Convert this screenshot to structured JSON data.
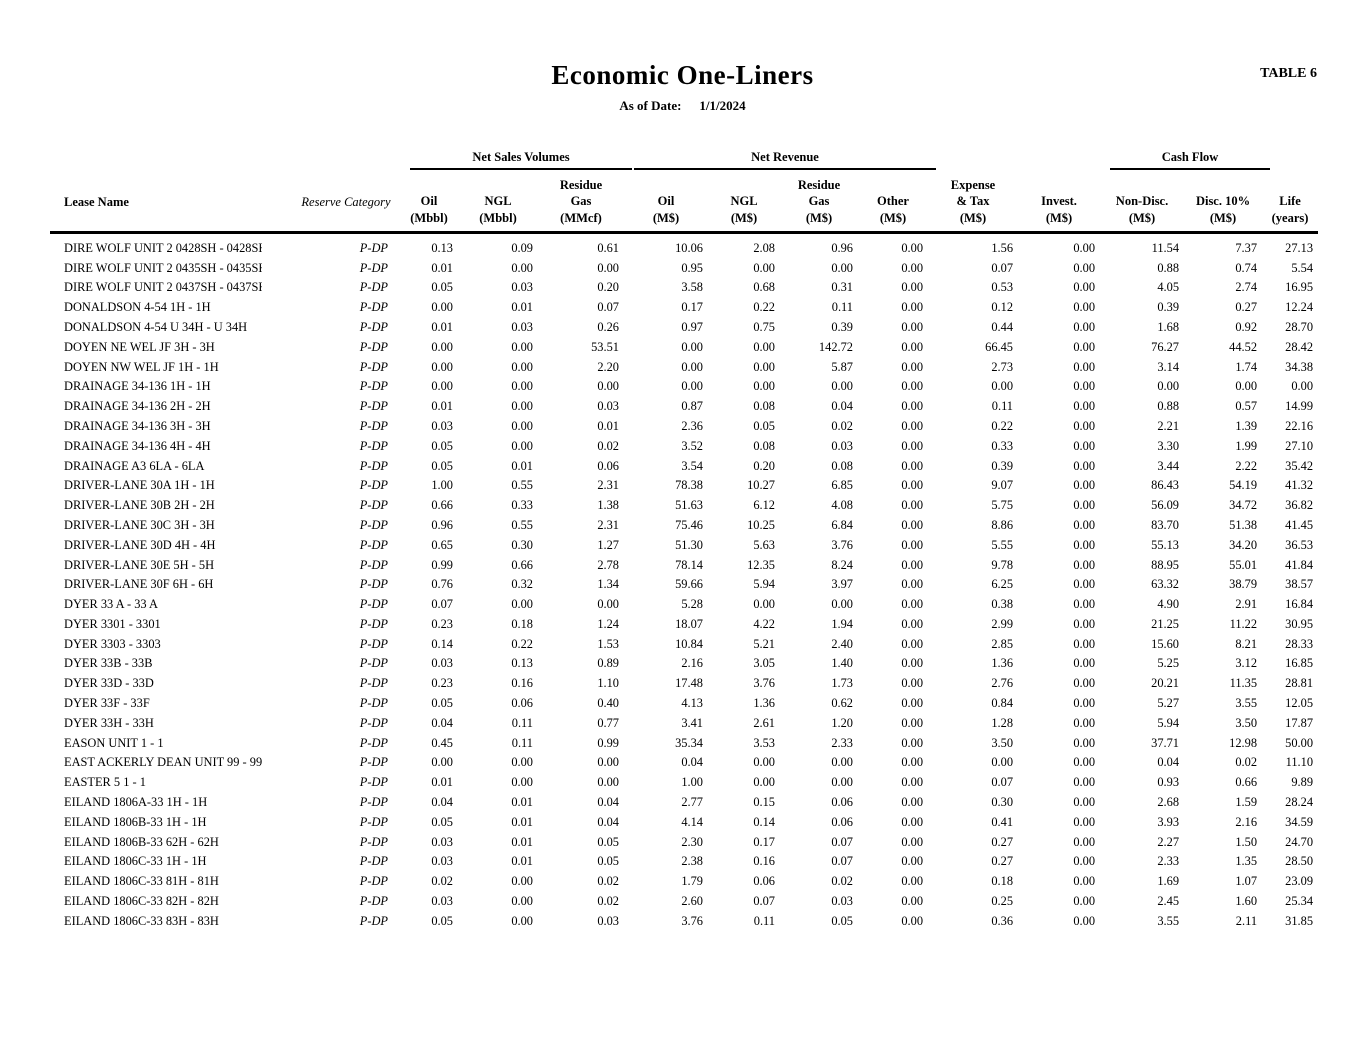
{
  "page": {
    "title": "Economic One-Liners",
    "as_of_label": "As of Date:",
    "as_of_value": "1/1/2024",
    "table_label": "TABLE 6"
  },
  "table": {
    "groups": {
      "net_sales_volumes": "Net Sales Volumes",
      "net_revenue": "Net Revenue",
      "cash_flow": "Cash Flow"
    },
    "headers": {
      "lease": "Lease Name",
      "rescat": "Reserve Category",
      "oil_vol": "Oil\n(Mbbl)",
      "ngl_vol": "NGL\n(Mbbl)",
      "resgas_vol": "Residue\nGas\n(MMcf)",
      "oil_rev": "Oil\n(M$)",
      "ngl_rev": "NGL\n(M$)",
      "resgas_rev": "Residue\nGas\n(M$)",
      "other_rev": "Other\n(M$)",
      "exptax": "Expense\n& Tax\n(M$)",
      "invest": "Invest.\n(M$)",
      "nondisc": "Non-Disc.\n(M$)",
      "disc10": "Disc. 10%\n(M$)",
      "life": "Life\n(years)"
    },
    "rows": [
      [
        "DIRE WOLF UNIT 2 0428SH - 0428SH",
        "P-DP",
        "0.13",
        "0.09",
        "0.61",
        "10.06",
        "2.08",
        "0.96",
        "0.00",
        "1.56",
        "0.00",
        "11.54",
        "7.37",
        "27.13"
      ],
      [
        "DIRE WOLF UNIT 2 0435SH - 0435SH",
        "P-DP",
        "0.01",
        "0.00",
        "0.00",
        "0.95",
        "0.00",
        "0.00",
        "0.00",
        "0.07",
        "0.00",
        "0.88",
        "0.74",
        "5.54"
      ],
      [
        "DIRE WOLF UNIT 2 0437SH - 0437SH",
        "P-DP",
        "0.05",
        "0.03",
        "0.20",
        "3.58",
        "0.68",
        "0.31",
        "0.00",
        "0.53",
        "0.00",
        "4.05",
        "2.74",
        "16.95"
      ],
      [
        "DONALDSON 4-54 1H - 1H",
        "P-DP",
        "0.00",
        "0.01",
        "0.07",
        "0.17",
        "0.22",
        "0.11",
        "0.00",
        "0.12",
        "0.00",
        "0.39",
        "0.27",
        "12.24"
      ],
      [
        "DONALDSON 4-54 U 34H - U 34H",
        "P-DP",
        "0.01",
        "0.03",
        "0.26",
        "0.97",
        "0.75",
        "0.39",
        "0.00",
        "0.44",
        "0.00",
        "1.68",
        "0.92",
        "28.70"
      ],
      [
        "DOYEN NE WEL JF 3H - 3H",
        "P-DP",
        "0.00",
        "0.00",
        "53.51",
        "0.00",
        "0.00",
        "142.72",
        "0.00",
        "66.45",
        "0.00",
        "76.27",
        "44.52",
        "28.42"
      ],
      [
        "DOYEN NW WEL JF 1H - 1H",
        "P-DP",
        "0.00",
        "0.00",
        "2.20",
        "0.00",
        "0.00",
        "5.87",
        "0.00",
        "2.73",
        "0.00",
        "3.14",
        "1.74",
        "34.38"
      ],
      [
        "DRAINAGE 34-136 1H - 1H",
        "P-DP",
        "0.00",
        "0.00",
        "0.00",
        "0.00",
        "0.00",
        "0.00",
        "0.00",
        "0.00",
        "0.00",
        "0.00",
        "0.00",
        "0.00"
      ],
      [
        "DRAINAGE 34-136 2H - 2H",
        "P-DP",
        "0.01",
        "0.00",
        "0.03",
        "0.87",
        "0.08",
        "0.04",
        "0.00",
        "0.11",
        "0.00",
        "0.88",
        "0.57",
        "14.99"
      ],
      [
        "DRAINAGE 34-136 3H - 3H",
        "P-DP",
        "0.03",
        "0.00",
        "0.01",
        "2.36",
        "0.05",
        "0.02",
        "0.00",
        "0.22",
        "0.00",
        "2.21",
        "1.39",
        "22.16"
      ],
      [
        "DRAINAGE 34-136 4H - 4H",
        "P-DP",
        "0.05",
        "0.00",
        "0.02",
        "3.52",
        "0.08",
        "0.03",
        "0.00",
        "0.33",
        "0.00",
        "3.30",
        "1.99",
        "27.10"
      ],
      [
        "DRAINAGE A3 6LA - 6LA",
        "P-DP",
        "0.05",
        "0.01",
        "0.06",
        "3.54",
        "0.20",
        "0.08",
        "0.00",
        "0.39",
        "0.00",
        "3.44",
        "2.22",
        "35.42"
      ],
      [
        "DRIVER-LANE 30A 1H - 1H",
        "P-DP",
        "1.00",
        "0.55",
        "2.31",
        "78.38",
        "10.27",
        "6.85",
        "0.00",
        "9.07",
        "0.00",
        "86.43",
        "54.19",
        "41.32"
      ],
      [
        "DRIVER-LANE 30B 2H - 2H",
        "P-DP",
        "0.66",
        "0.33",
        "1.38",
        "51.63",
        "6.12",
        "4.08",
        "0.00",
        "5.75",
        "0.00",
        "56.09",
        "34.72",
        "36.82"
      ],
      [
        "DRIVER-LANE 30C 3H - 3H",
        "P-DP",
        "0.96",
        "0.55",
        "2.31",
        "75.46",
        "10.25",
        "6.84",
        "0.00",
        "8.86",
        "0.00",
        "83.70",
        "51.38",
        "41.45"
      ],
      [
        "DRIVER-LANE 30D 4H - 4H",
        "P-DP",
        "0.65",
        "0.30",
        "1.27",
        "51.30",
        "5.63",
        "3.76",
        "0.00",
        "5.55",
        "0.00",
        "55.13",
        "34.20",
        "36.53"
      ],
      [
        "DRIVER-LANE 30E 5H - 5H",
        "P-DP",
        "0.99",
        "0.66",
        "2.78",
        "78.14",
        "12.35",
        "8.24",
        "0.00",
        "9.78",
        "0.00",
        "88.95",
        "55.01",
        "41.84"
      ],
      [
        "DRIVER-LANE 30F 6H - 6H",
        "P-DP",
        "0.76",
        "0.32",
        "1.34",
        "59.66",
        "5.94",
        "3.97",
        "0.00",
        "6.25",
        "0.00",
        "63.32",
        "38.79",
        "38.57"
      ],
      [
        "DYER 33 A - 33 A",
        "P-DP",
        "0.07",
        "0.00",
        "0.00",
        "5.28",
        "0.00",
        "0.00",
        "0.00",
        "0.38",
        "0.00",
        "4.90",
        "2.91",
        "16.84"
      ],
      [
        "DYER 3301 - 3301",
        "P-DP",
        "0.23",
        "0.18",
        "1.24",
        "18.07",
        "4.22",
        "1.94",
        "0.00",
        "2.99",
        "0.00",
        "21.25",
        "11.22",
        "30.95"
      ],
      [
        "DYER 3303 - 3303",
        "P-DP",
        "0.14",
        "0.22",
        "1.53",
        "10.84",
        "5.21",
        "2.40",
        "0.00",
        "2.85",
        "0.00",
        "15.60",
        "8.21",
        "28.33"
      ],
      [
        "DYER 33B - 33B",
        "P-DP",
        "0.03",
        "0.13",
        "0.89",
        "2.16",
        "3.05",
        "1.40",
        "0.00",
        "1.36",
        "0.00",
        "5.25",
        "3.12",
        "16.85"
      ],
      [
        "DYER 33D - 33D",
        "P-DP",
        "0.23",
        "0.16",
        "1.10",
        "17.48",
        "3.76",
        "1.73",
        "0.00",
        "2.76",
        "0.00",
        "20.21",
        "11.35",
        "28.81"
      ],
      [
        "DYER 33F - 33F",
        "P-DP",
        "0.05",
        "0.06",
        "0.40",
        "4.13",
        "1.36",
        "0.62",
        "0.00",
        "0.84",
        "0.00",
        "5.27",
        "3.55",
        "12.05"
      ],
      [
        "DYER 33H - 33H",
        "P-DP",
        "0.04",
        "0.11",
        "0.77",
        "3.41",
        "2.61",
        "1.20",
        "0.00",
        "1.28",
        "0.00",
        "5.94",
        "3.50",
        "17.87"
      ],
      [
        "EASON UNIT 1 - 1",
        "P-DP",
        "0.45",
        "0.11",
        "0.99",
        "35.34",
        "3.53",
        "2.33",
        "0.00",
        "3.50",
        "0.00",
        "37.71",
        "12.98",
        "50.00"
      ],
      [
        "EAST ACKERLY DEAN UNIT 99 - 99",
        "P-DP",
        "0.00",
        "0.00",
        "0.00",
        "0.04",
        "0.00",
        "0.00",
        "0.00",
        "0.00",
        "0.00",
        "0.04",
        "0.02",
        "11.10"
      ],
      [
        "EASTER 5 1 - 1",
        "P-DP",
        "0.01",
        "0.00",
        "0.00",
        "1.00",
        "0.00",
        "0.00",
        "0.00",
        "0.07",
        "0.00",
        "0.93",
        "0.66",
        "9.89"
      ],
      [
        "EILAND 1806A-33 1H - 1H",
        "P-DP",
        "0.04",
        "0.01",
        "0.04",
        "2.77",
        "0.15",
        "0.06",
        "0.00",
        "0.30",
        "0.00",
        "2.68",
        "1.59",
        "28.24"
      ],
      [
        "EILAND 1806B-33 1H - 1H",
        "P-DP",
        "0.05",
        "0.01",
        "0.04",
        "4.14",
        "0.14",
        "0.06",
        "0.00",
        "0.41",
        "0.00",
        "3.93",
        "2.16",
        "34.59"
      ],
      [
        "EILAND 1806B-33 62H - 62H",
        "P-DP",
        "0.03",
        "0.01",
        "0.05",
        "2.30",
        "0.17",
        "0.07",
        "0.00",
        "0.27",
        "0.00",
        "2.27",
        "1.50",
        "24.70"
      ],
      [
        "EILAND 1806C-33 1H - 1H",
        "P-DP",
        "0.03",
        "0.01",
        "0.05",
        "2.38",
        "0.16",
        "0.07",
        "0.00",
        "0.27",
        "0.00",
        "2.33",
        "1.35",
        "28.50"
      ],
      [
        "EILAND 1806C-33 81H - 81H",
        "P-DP",
        "0.02",
        "0.00",
        "0.02",
        "1.79",
        "0.06",
        "0.02",
        "0.00",
        "0.18",
        "0.00",
        "1.69",
        "1.07",
        "23.09"
      ],
      [
        "EILAND 1806C-33 82H - 82H",
        "P-DP",
        "0.03",
        "0.00",
        "0.02",
        "2.60",
        "0.07",
        "0.03",
        "0.00",
        "0.25",
        "0.00",
        "2.45",
        "1.60",
        "25.34"
      ],
      [
        "EILAND 1806C-33 83H - 83H",
        "P-DP",
        "0.05",
        "0.00",
        "0.03",
        "3.76",
        "0.11",
        "0.05",
        "0.00",
        "0.36",
        "0.00",
        "3.55",
        "2.11",
        "31.85"
      ]
    ]
  }
}
